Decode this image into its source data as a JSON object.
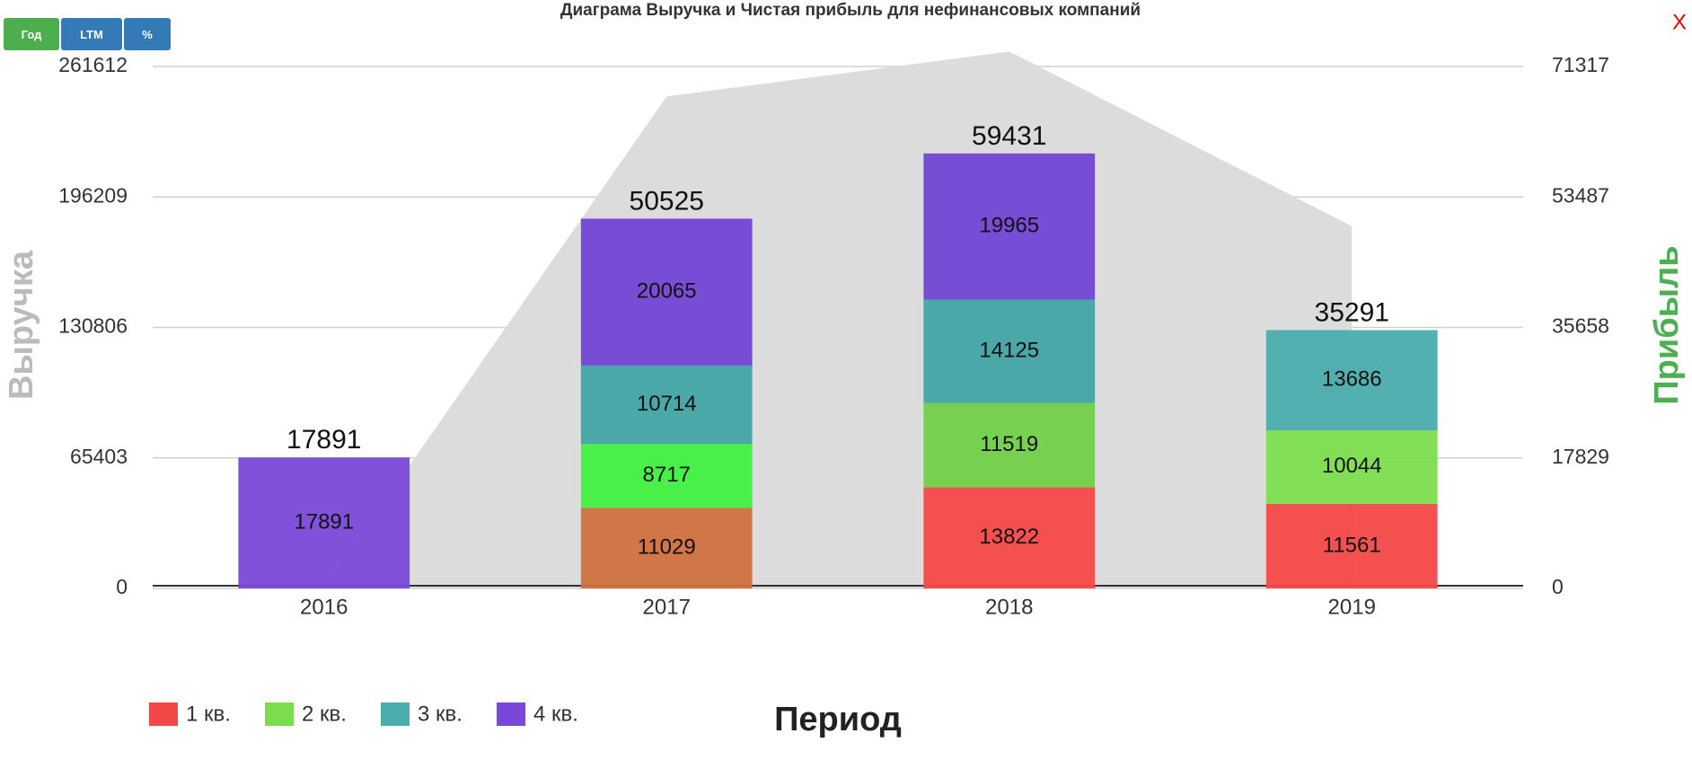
{
  "buttons": [
    "Год",
    "LTM",
    "%"
  ],
  "close": "X",
  "chart_data": {
    "type": "bar",
    "stacked": true,
    "title": "Диаграма Выручка и Чистая прибыль для нефинансовых компаний",
    "ylabel": "Выручка",
    "y2label": "Прибыль",
    "xlabel": "Период",
    "categories": [
      "2016",
      "2017",
      "2018",
      "2019"
    ],
    "series": [
      {
        "name": "1 кв.",
        "color": "#f44848",
        "colors": [
          null,
          "#cf7040",
          "#f44848",
          "#f44848"
        ],
        "values": [
          null,
          11029,
          13822,
          11561
        ],
        "axis": "y2"
      },
      {
        "name": "2 кв.",
        "color": "#7cdd4c",
        "colors": [
          null,
          "#40f040",
          "#70d048",
          "#7cdd4c"
        ],
        "values": [
          null,
          8717,
          11519,
          10044
        ],
        "axis": "y2"
      },
      {
        "name": "3 кв.",
        "color": "#4aacac",
        "colors": [
          null,
          "#42a4a4",
          "#42a4a4",
          "#4aacac"
        ],
        "values": [
          null,
          10714,
          14125,
          13686
        ],
        "axis": "y2"
      },
      {
        "name": "4 кв.",
        "color": "#7a48d8",
        "colors": [
          "#7a48d8",
          "#7244d4",
          "#7044d4",
          null
        ],
        "values": [
          17891,
          20065,
          19965,
          null
        ],
        "axis": "y2"
      }
    ],
    "totals": [
      17891,
      50525,
      59431,
      35291
    ],
    "area": {
      "color": "#dcdcdc",
      "values": [
        0,
        246600,
        269100,
        181600
      ]
    },
    "ylim": [
      0,
      261612
    ],
    "yticks": [
      0,
      65403,
      130806,
      196209,
      261612
    ],
    "y2lim": [
      0,
      71317
    ],
    "y2ticks": [
      0,
      17829,
      35658,
      53487,
      71317
    ],
    "grid": true,
    "legend": "bottom-left"
  }
}
